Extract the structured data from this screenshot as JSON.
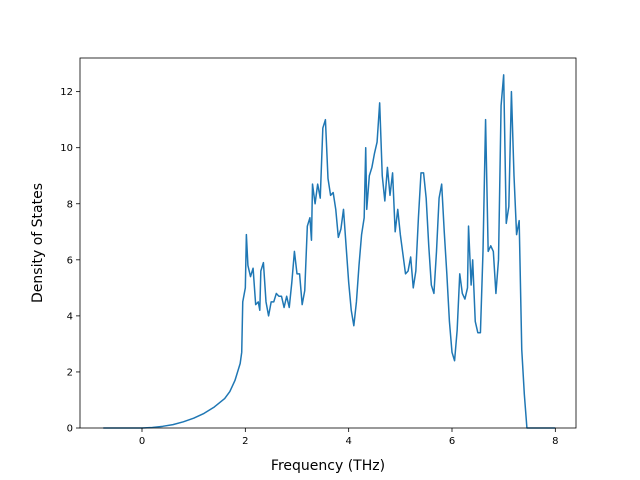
{
  "chart_data": {
    "type": "line",
    "title": "",
    "xlabel": "Frequency (THz)",
    "ylabel": "Density of States",
    "xlim": [
      -1.2,
      8.4
    ],
    "ylim": [
      0,
      13.2
    ],
    "xticks": [
      0,
      2,
      4,
      6,
      8
    ],
    "yticks": [
      0,
      2,
      4,
      6,
      8,
      10,
      12
    ],
    "grid": false,
    "legend": "none",
    "series": [
      {
        "color": "#1f77b4",
        "points": [
          [
            -0.75,
            0
          ],
          [
            -0.5,
            0
          ],
          [
            -0.25,
            0
          ],
          [
            0.0,
            0
          ],
          [
            0.2,
            0.02
          ],
          [
            0.4,
            0.06
          ],
          [
            0.6,
            0.12
          ],
          [
            0.8,
            0.22
          ],
          [
            1.0,
            0.35
          ],
          [
            1.2,
            0.52
          ],
          [
            1.4,
            0.75
          ],
          [
            1.6,
            1.05
          ],
          [
            1.7,
            1.3
          ],
          [
            1.8,
            1.7
          ],
          [
            1.85,
            2.0
          ],
          [
            1.9,
            2.3
          ],
          [
            1.93,
            2.7
          ],
          [
            1.95,
            4.5
          ],
          [
            2.0,
            5.0
          ],
          [
            2.02,
            6.9
          ],
          [
            2.05,
            5.8
          ],
          [
            2.1,
            5.4
          ],
          [
            2.15,
            5.7
          ],
          [
            2.2,
            4.4
          ],
          [
            2.25,
            4.5
          ],
          [
            2.28,
            4.2
          ],
          [
            2.3,
            5.6
          ],
          [
            2.35,
            5.9
          ],
          [
            2.4,
            4.5
          ],
          [
            2.45,
            4.0
          ],
          [
            2.5,
            4.5
          ],
          [
            2.55,
            4.5
          ],
          [
            2.6,
            4.8
          ],
          [
            2.65,
            4.7
          ],
          [
            2.7,
            4.7
          ],
          [
            2.75,
            4.3
          ],
          [
            2.8,
            4.7
          ],
          [
            2.85,
            4.3
          ],
          [
            2.9,
            5.2
          ],
          [
            2.95,
            6.3
          ],
          [
            3.0,
            5.5
          ],
          [
            3.05,
            5.5
          ],
          [
            3.1,
            4.4
          ],
          [
            3.15,
            4.9
          ],
          [
            3.2,
            7.2
          ],
          [
            3.25,
            7.5
          ],
          [
            3.28,
            6.7
          ],
          [
            3.3,
            8.7
          ],
          [
            3.35,
            8.0
          ],
          [
            3.4,
            8.7
          ],
          [
            3.45,
            8.2
          ],
          [
            3.5,
            10.7
          ],
          [
            3.55,
            11.0
          ],
          [
            3.6,
            8.9
          ],
          [
            3.65,
            8.3
          ],
          [
            3.7,
            8.4
          ],
          [
            3.75,
            7.8
          ],
          [
            3.8,
            6.8
          ],
          [
            3.85,
            7.1
          ],
          [
            3.9,
            7.8
          ],
          [
            3.95,
            6.5
          ],
          [
            4.0,
            5.2
          ],
          [
            4.05,
            4.2
          ],
          [
            4.1,
            3.65
          ],
          [
            4.15,
            4.5
          ],
          [
            4.2,
            5.8
          ],
          [
            4.25,
            6.9
          ],
          [
            4.3,
            7.5
          ],
          [
            4.33,
            10.0
          ],
          [
            4.35,
            7.8
          ],
          [
            4.4,
            9.0
          ],
          [
            4.45,
            9.3
          ],
          [
            4.5,
            9.8
          ],
          [
            4.55,
            10.2
          ],
          [
            4.6,
            11.6
          ],
          [
            4.65,
            9.0
          ],
          [
            4.7,
            8.1
          ],
          [
            4.75,
            9.3
          ],
          [
            4.8,
            8.3
          ],
          [
            4.85,
            9.1
          ],
          [
            4.9,
            7.0
          ],
          [
            4.95,
            7.8
          ],
          [
            5.0,
            6.9
          ],
          [
            5.05,
            6.2
          ],
          [
            5.1,
            5.5
          ],
          [
            5.15,
            5.6
          ],
          [
            5.2,
            6.1
          ],
          [
            5.25,
            5.0
          ],
          [
            5.3,
            5.6
          ],
          [
            5.35,
            7.5
          ],
          [
            5.4,
            9.1
          ],
          [
            5.45,
            9.1
          ],
          [
            5.5,
            8.2
          ],
          [
            5.55,
            6.5
          ],
          [
            5.6,
            5.1
          ],
          [
            5.65,
            4.8
          ],
          [
            5.7,
            6.3
          ],
          [
            5.75,
            8.2
          ],
          [
            5.8,
            8.7
          ],
          [
            5.85,
            7.0
          ],
          [
            5.9,
            5.5
          ],
          [
            5.95,
            3.8
          ],
          [
            6.0,
            2.7
          ],
          [
            6.05,
            2.4
          ],
          [
            6.1,
            3.5
          ],
          [
            6.15,
            5.5
          ],
          [
            6.2,
            4.8
          ],
          [
            6.25,
            4.6
          ],
          [
            6.3,
            5.0
          ],
          [
            6.32,
            7.2
          ],
          [
            6.37,
            5.1
          ],
          [
            6.4,
            6.0
          ],
          [
            6.45,
            3.8
          ],
          [
            6.5,
            3.4
          ],
          [
            6.55,
            3.4
          ],
          [
            6.6,
            6.3
          ],
          [
            6.65,
            11.0
          ],
          [
            6.7,
            6.3
          ],
          [
            6.75,
            6.5
          ],
          [
            6.8,
            6.3
          ],
          [
            6.85,
            4.8
          ],
          [
            6.9,
            6.0
          ],
          [
            6.95,
            11.5
          ],
          [
            7.0,
            12.6
          ],
          [
            7.05,
            7.3
          ],
          [
            7.1,
            7.9
          ],
          [
            7.15,
            12.0
          ],
          [
            7.2,
            9.0
          ],
          [
            7.25,
            6.9
          ],
          [
            7.3,
            7.4
          ],
          [
            7.35,
            2.8
          ],
          [
            7.4,
            1.2
          ],
          [
            7.45,
            0.0
          ],
          [
            7.6,
            0
          ],
          [
            7.8,
            0
          ],
          [
            8.0,
            0
          ]
        ]
      }
    ]
  }
}
